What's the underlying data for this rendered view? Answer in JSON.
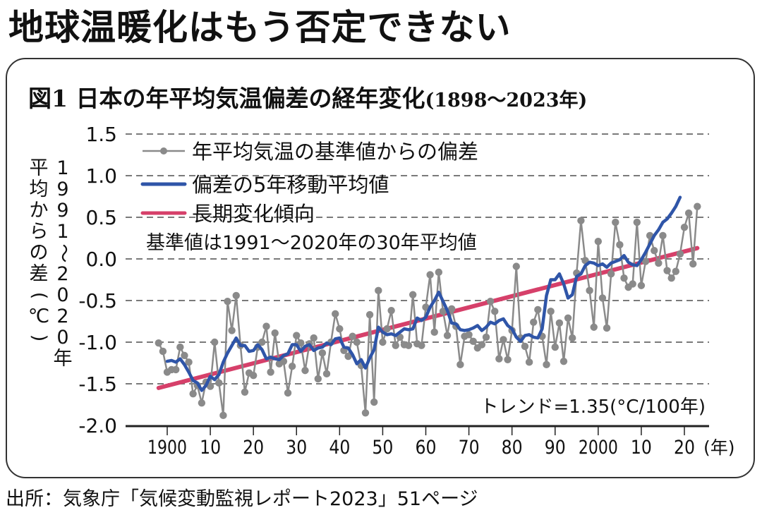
{
  "headline": "地球温暖化はもう否定できない",
  "chart_title": {
    "main": "図1 日本の年平均気温偏差の経年変化",
    "range": "(1898～2023年)"
  },
  "source": "出所：気象庁「気候変動監視レポート2023」51ページ",
  "chart_data": {
    "type": "line",
    "title": "図1 日本の年平均気温偏差の経年変化(1898～2023年)",
    "xlabel": "(年)",
    "ylabel_lines": [
      "平均からの差(℃)",
      "1991～2020年"
    ],
    "ylabel": "1991～2020年平均からの差(℃)",
    "ylim": [
      -2.0,
      1.5
    ],
    "xlim": [
      1895,
      2026
    ],
    "yticks": [
      1.5,
      1.0,
      0.5,
      0.0,
      -0.5,
      -1.0,
      -1.5,
      -2.0
    ],
    "ytick_labels": [
      "1.5",
      "1.0",
      "0.5",
      "0.0",
      "-0.5",
      "-1.0",
      "-1.5",
      "-2.0"
    ],
    "xticks": [
      1900,
      1910,
      1920,
      1930,
      1940,
      1950,
      1960,
      1970,
      1980,
      1990,
      2000,
      2010,
      2020
    ],
    "xtick_labels": [
      "1900",
      "10",
      "20",
      "30",
      "40",
      "50",
      "60",
      "70",
      "80",
      "90",
      "2000",
      "10",
      "20"
    ],
    "grid": "horizontal-dashed",
    "legend_position": "top-left",
    "note": "基準値は1991～2020年の30年平均値",
    "trend_label": "トレンド=1.35(°C/100年)",
    "series": [
      {
        "name": "年平均気温の基準値からの偏差",
        "color": "#8a8a8a",
        "style": "line-with-markers",
        "x_start": 1898,
        "values": [
          -1.01,
          -1.11,
          -1.36,
          -1.33,
          -1.33,
          -1.06,
          -1.16,
          -1.24,
          -1.62,
          -1.52,
          -1.73,
          -1.48,
          -1.53,
          -1.0,
          -1.49,
          -1.88,
          -0.51,
          -0.86,
          -0.44,
          -1.04,
          -1.6,
          -1.37,
          -1.4,
          -1.06,
          -1.0,
          -0.81,
          -1.36,
          -0.89,
          -1.26,
          -1.23,
          -1.61,
          -1.29,
          -0.92,
          -1.01,
          -1.34,
          -1.02,
          -0.95,
          -1.44,
          -1.13,
          -1.38,
          -1.0,
          -0.66,
          -0.84,
          -1.1,
          -1.17,
          -0.93,
          -1.0,
          -1.28,
          -1.85,
          -0.67,
          -1.72,
          -0.38,
          -1.0,
          -0.84,
          -0.62,
          -1.04,
          -0.94,
          -1.03,
          -1.04,
          -0.43,
          -1.02,
          -1.04,
          -0.58,
          -0.19,
          -0.88,
          -0.16,
          -0.63,
          -0.92,
          -0.6,
          -0.81,
          -1.27,
          -0.93,
          -0.91,
          -0.99,
          -1.07,
          -1.03,
          -0.94,
          -0.51,
          -0.63,
          -1.2,
          -0.97,
          -1.21,
          -0.86,
          -0.09,
          -0.95,
          -1.05,
          -1.24,
          -0.76,
          -0.61,
          -0.93,
          -1.27,
          -0.63,
          -1.06,
          -0.77,
          -1.23,
          -0.71,
          -0.95,
          -0.17,
          0.46,
          -0.02,
          -0.38,
          -0.82,
          0.21,
          -0.47,
          -0.83,
          -0.18,
          0.44,
          0.17,
          -0.23,
          -0.34,
          -0.3,
          0.44,
          -0.32,
          -0.03,
          0.28,
          0.1,
          -0.05,
          0.28,
          -0.14,
          -0.23,
          -0.15,
          0.06,
          0.38,
          0.55,
          -0.06,
          0.63
        ]
      },
      {
        "name": "偏差の5年移動平均値",
        "color": "#2f55a8",
        "style": "line",
        "x_start": 1900,
        "values": [
          -1.23,
          -1.22,
          -1.24,
          -1.2,
          -1.27,
          -1.36,
          -1.46,
          -1.49,
          -1.58,
          -1.52,
          -1.41,
          -1.45,
          -1.39,
          -1.24,
          -1.13,
          -1.04,
          -0.95,
          -1.04,
          -1.04,
          -1.11,
          -1.1,
          -1.03,
          -1.09,
          -1.2,
          -1.18,
          -1.2,
          -1.21,
          -1.16,
          -1.14,
          -1.03,
          -1.03,
          -1.11,
          -1.05,
          -1.03,
          -1.1,
          -1.07,
          -1.06,
          -1.01,
          -1.03,
          -0.96,
          -0.95,
          -1.06,
          -1.07,
          -1.15,
          -1.26,
          -1.21,
          -1.31,
          -1.19,
          -1.09,
          -0.82,
          -0.88,
          -0.91,
          -0.9,
          -0.92,
          -0.88,
          -0.84,
          -0.85,
          -0.84,
          -0.71,
          -0.74,
          -0.7,
          -0.58,
          -0.5,
          -0.4,
          -0.51,
          -0.62,
          -0.77,
          -0.78,
          -0.85,
          -0.86,
          -0.85,
          -0.83,
          -0.8,
          -0.86,
          -0.82,
          -0.76,
          -0.78,
          -0.74,
          -0.72,
          -0.8,
          -0.84,
          -0.94,
          -0.99,
          -0.92,
          -0.91,
          -0.94,
          -0.95,
          -0.84,
          -0.44,
          -0.25,
          -0.25,
          -0.18,
          -0.3,
          -0.47,
          -0.43,
          -0.21,
          -0.18,
          -0.08,
          -0.04,
          -0.05,
          -0.08,
          -0.06,
          -0.1,
          -0.05,
          -0.03,
          -0.01,
          0.04,
          -0.04,
          -0.07,
          -0.08,
          -0.01,
          0.08,
          0.18,
          0.28,
          0.35,
          0.44,
          0.48,
          0.55,
          0.63,
          0.74
        ]
      },
      {
        "name": "長期変化傾向",
        "color": "#d6406a",
        "style": "line",
        "x": [
          1898,
          2023
        ],
        "values": [
          -1.55,
          0.13
        ]
      }
    ]
  }
}
